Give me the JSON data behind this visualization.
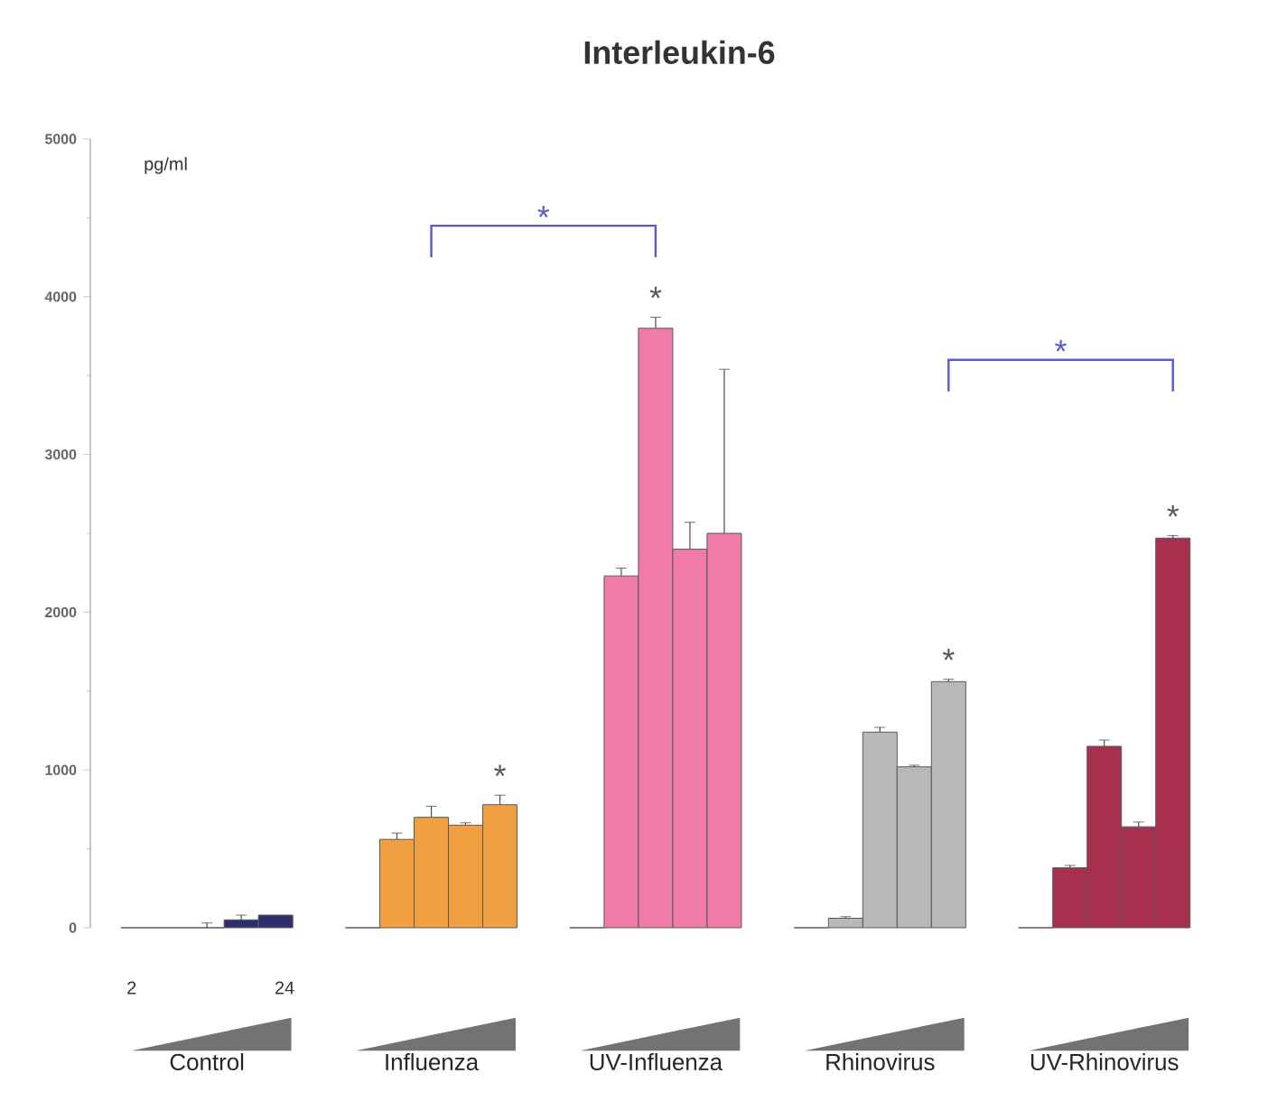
{
  "chart_data": {
    "type": "bar",
    "title": "Interleukin-6",
    "ylabel": "pg/ml",
    "categories": [
      "Control",
      "Influenza",
      "UV-Influenza",
      "Rhinovirus",
      "UV-Rhinovirus"
    ],
    "ylim": [
      0,
      5000
    ],
    "yticks": [
      0,
      1000,
      2000,
      3000,
      4000,
      5000
    ],
    "series": [
      {
        "colors": [
          "#2e2e6e",
          "#f0a040",
          "#f07aa8",
          "#b8b8b8",
          "#a8304f"
        ],
        "values": [
          0,
          0,
          0,
          0,
          0
        ],
        "errors": [
          null,
          null,
          null,
          null,
          null
        ]
      },
      {
        "colors": [
          "#2e2e6e",
          "#f0a040",
          "#f07aa8",
          "#b8b8b8",
          "#a8304f"
        ],
        "values": [
          0,
          560,
          2230,
          60,
          380
        ],
        "errors": [
          null,
          40,
          50,
          10,
          15
        ]
      },
      {
        "colors": [
          "#2e2e6e",
          "#f0a040",
          "#f07aa8",
          "#b8b8b8",
          "#a8304f"
        ],
        "values": [
          0,
          700,
          3800,
          1240,
          1150
        ],
        "errors": [
          30,
          70,
          70,
          30,
          40
        ]
      },
      {
        "colors": [
          "#2e2e6e",
          "#f0a040",
          "#f07aa8",
          "#b8b8b8",
          "#a8304f"
        ],
        "values": [
          50,
          650,
          2400,
          1020,
          640
        ],
        "errors": [
          30,
          15,
          170,
          10,
          30
        ]
      },
      {
        "colors": [
          "#2e2e6e",
          "#f0a040",
          "#f07aa8",
          "#b8b8b8",
          "#a8304f"
        ],
        "values": [
          80,
          780,
          2500,
          1560,
          2470
        ],
        "errors": [
          null,
          60,
          1040,
          15,
          15
        ]
      }
    ],
    "annotations": [
      {
        "text": "*",
        "x": "Influenza",
        "y": 780
      },
      {
        "text": "*",
        "x": "UV-Influenza",
        "y": 3800
      },
      "*",
      "*",
      "*",
      "*",
      "2",
      "24"
    ]
  }
}
